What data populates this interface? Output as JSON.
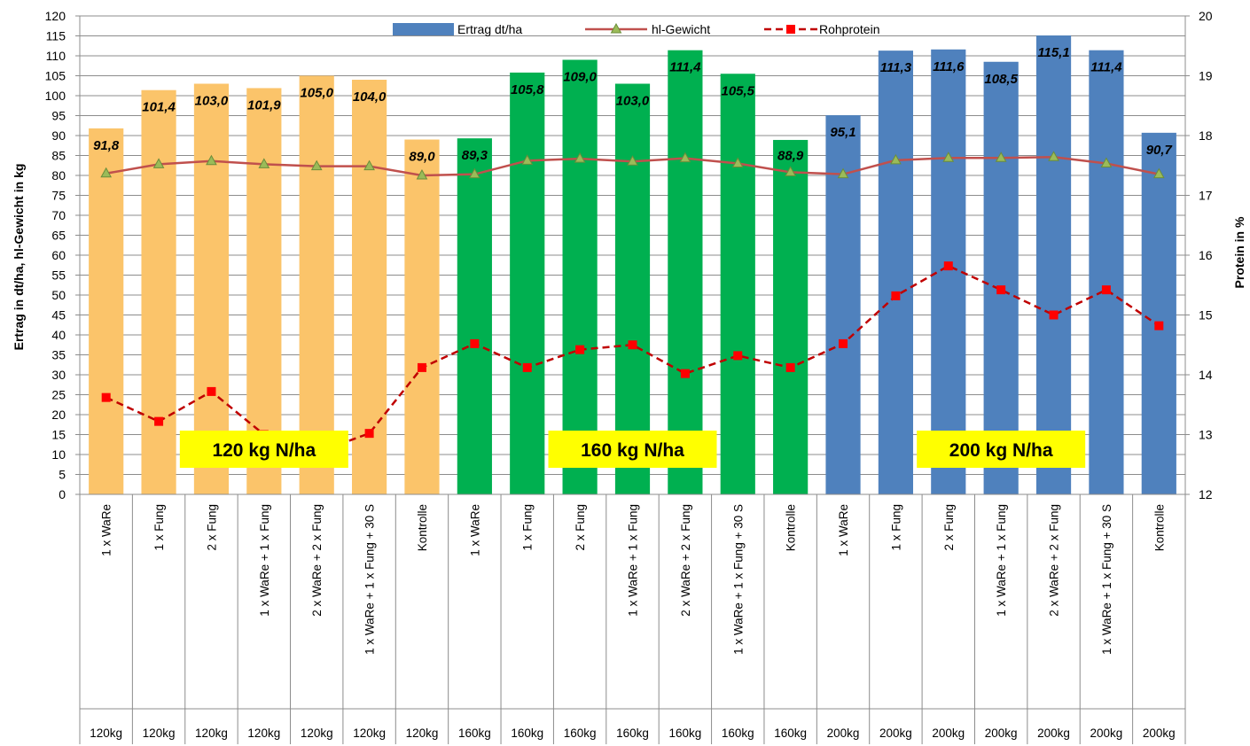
{
  "chart_data": {
    "type": "bar",
    "title": "",
    "ylabel": "Ertrag in dt/ha, hl-Gewicht in kg",
    "y2label": "Protein in %",
    "ylim": [
      0,
      120
    ],
    "y2lim": [
      12,
      20
    ],
    "y_ticks": [
      "0",
      "5",
      "10",
      "15",
      "20",
      "25",
      "30",
      "35",
      "40",
      "45",
      "50",
      "55",
      "60",
      "65",
      "70",
      "75",
      "80",
      "85",
      "90",
      "95",
      "100",
      "105",
      "110",
      "115",
      "120"
    ],
    "y2_ticks": [
      "12",
      "13",
      "14",
      "15",
      "16",
      "17",
      "18",
      "19",
      "20"
    ],
    "categories": [
      "1 x WaRe",
      "1 x Fung",
      "2 x Fung",
      "1 x WaRe + 1 x Fung",
      "2 x WaRe + 2 x Fung",
      "1 x WaRe + 1 x Fung + 30 S",
      "Kontrolle",
      "1 x WaRe",
      "1 x Fung",
      "2 x Fung",
      "1 x WaRe + 1 x Fung",
      "2 x WaRe + 2 x Fung",
      "1 x WaRe + 1 x Fung + 30 S",
      "Kontrolle",
      "1 x WaRe",
      "1 x Fung",
      "2 x Fung",
      "1 x WaRe + 1 x Fung",
      "2 x WaRe + 2 x Fung",
      "1 x WaRe + 1 x Fung + 30 S",
      "Kontrolle"
    ],
    "groups": [
      "120kg",
      "120kg",
      "120kg",
      "120kg",
      "120kg",
      "120kg",
      "120kg",
      "160kg",
      "160kg",
      "160kg",
      "160kg",
      "160kg",
      "160kg",
      "160kg",
      "200kg",
      "200kg",
      "200kg",
      "200kg",
      "200kg",
      "200kg",
      "200kg"
    ],
    "group_boxes": [
      "120 kg N/ha",
      "160 kg N/ha",
      "200 kg N/ha"
    ],
    "series": [
      {
        "name": "Ertrag dt/ha",
        "type": "bar",
        "values": [
          91.8,
          101.4,
          103.0,
          101.9,
          105.0,
          104.0,
          89.0,
          89.3,
          105.8,
          109.0,
          103.0,
          111.4,
          105.5,
          88.9,
          95.1,
          111.3,
          111.6,
          108.5,
          115.1,
          111.4,
          90.7
        ],
        "labels": [
          "91,8",
          "101,4",
          "103,0",
          "101,9",
          "105,0",
          "104,0",
          "89,0",
          "89,3",
          "105,8",
          "109,0",
          "103,0",
          "111,4",
          "105,5",
          "88,9",
          "95,1",
          "111,3",
          "111,6",
          "108,5",
          "115,1",
          "111,4",
          "90,7"
        ],
        "colors": [
          "#fbc46a",
          "#fbc46a",
          "#fbc46a",
          "#fbc46a",
          "#fbc46a",
          "#fbc46a",
          "#fbc46a",
          "#00b050",
          "#00b050",
          "#00b050",
          "#00b050",
          "#00b050",
          "#00b050",
          "#00b050",
          "#4f81bd",
          "#4f81bd",
          "#4f81bd",
          "#4f81bd",
          "#4f81bd",
          "#4f81bd",
          "#4f81bd"
        ]
      },
      {
        "name": "hl-Gewicht",
        "type": "line",
        "axis": "left",
        "values": [
          80.5,
          82.8,
          83.6,
          82.8,
          82.3,
          82.3,
          80.0,
          80.3,
          83.7,
          84.2,
          83.5,
          84.3,
          83.0,
          80.8,
          80.3,
          83.8,
          84.4,
          84.4,
          84.6,
          83.0,
          80.3
        ],
        "color": "#c0504d",
        "marker_color": "#9bbb59"
      },
      {
        "name": "Rohprotein",
        "type": "line",
        "axis": "right",
        "values": [
          13.62,
          13.22,
          13.72,
          13.0,
          12.7,
          13.02,
          14.12,
          14.52,
          14.12,
          14.42,
          14.5,
          14.02,
          14.32,
          14.12,
          14.52,
          15.32,
          15.82,
          15.42,
          15.0,
          15.42,
          14.82
        ],
        "color": "#c00000",
        "marker_color": "#ff0000",
        "dashed": true
      }
    ],
    "legend_position": "top",
    "grid": true
  }
}
